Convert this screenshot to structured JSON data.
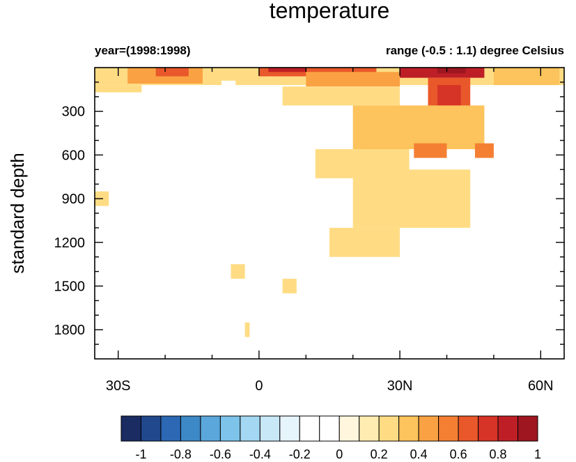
{
  "chart_data": {
    "type": "heatmap",
    "title": "temperature",
    "left_string": "year=(1998:1998)",
    "right_string": "range (-0.5 : 1.1) degree Celsius",
    "xlabel": "",
    "ylabel": "standard depth",
    "x_range": [
      -35,
      65
    ],
    "y_range": [
      0,
      2000
    ],
    "y_reversed": true,
    "x_ticks": [
      {
        "value": -30,
        "label": "30S"
      },
      {
        "value": 0,
        "label": "0"
      },
      {
        "value": 30,
        "label": "30N"
      },
      {
        "value": 60,
        "label": "60N"
      }
    ],
    "y_ticks": [
      {
        "value": 300,
        "label": "300"
      },
      {
        "value": 600,
        "label": "600"
      },
      {
        "value": 900,
        "label": "900"
      },
      {
        "value": 1200,
        "label": "1200"
      },
      {
        "value": 1500,
        "label": "1500"
      },
      {
        "value": 1800,
        "label": "1800"
      }
    ],
    "colorbar": {
      "levels": [
        -1,
        -0.9,
        -0.8,
        -0.7,
        -0.6,
        -0.5,
        -0.4,
        -0.3,
        -0.2,
        -0.1,
        0,
        0.1,
        0.2,
        0.3,
        0.4,
        0.5,
        0.6,
        0.7,
        0.8,
        0.9,
        1
      ],
      "tick_labels": [
        "-1",
        "-0.8",
        "-0.6",
        "-0.4",
        "-0.2",
        "0",
        "0.2",
        "0.4",
        "0.6",
        "0.8",
        "1"
      ],
      "colors": [
        "#1b2c63",
        "#21488d",
        "#2c68b3",
        "#3d88c6",
        "#5ba7db",
        "#7dc3ea",
        "#a3d7f2",
        "#c8e7f7",
        "#e6f4fb",
        "#ffffff",
        "#ffffff",
        "#fff6dd",
        "#ffecb0",
        "#ffdc84",
        "#fdc35c",
        "#faa243",
        "#f47f33",
        "#e9582a",
        "#d63427",
        "#be1f26",
        "#9e1620"
      ]
    },
    "regions": [
      {
        "x": [
          -35,
          65
        ],
        "y": [
          0,
          120
        ],
        "value": 0.2
      },
      {
        "x": [
          -35,
          -25
        ],
        "y": [
          120,
          170
        ],
        "value": 0.2
      },
      {
        "x": [
          -25,
          -10
        ],
        "y": [
          120,
          160
        ],
        "value": -0.1
      },
      {
        "x": [
          -8,
          -5
        ],
        "y": [
          90,
          130
        ],
        "value": -0.2
      },
      {
        "x": [
          -28,
          -12
        ],
        "y": [
          0,
          110
        ],
        "value": 0.4
      },
      {
        "x": [
          -22,
          -15
        ],
        "y": [
          0,
          60
        ],
        "value": 0.6
      },
      {
        "x": [
          0,
          25
        ],
        "y": [
          0,
          60
        ],
        "value": 0.6
      },
      {
        "x": [
          2,
          10
        ],
        "y": [
          0,
          30
        ],
        "value": 0.8
      },
      {
        "x": [
          10,
          30
        ],
        "y": [
          30,
          130
        ],
        "value": 0.4
      },
      {
        "x": [
          5,
          30
        ],
        "y": [
          130,
          260
        ],
        "value": 0.2
      },
      {
        "x": [
          30,
          48
        ],
        "y": [
          0,
          70
        ],
        "value": 0.8
      },
      {
        "x": [
          38,
          44
        ],
        "y": [
          0,
          40
        ],
        "value": 0.9
      },
      {
        "x": [
          36,
          45
        ],
        "y": [
          70,
          330
        ],
        "value": 0.6
      },
      {
        "x": [
          38,
          43
        ],
        "y": [
          120,
          300
        ],
        "value": 0.7
      },
      {
        "x": [
          20,
          48
        ],
        "y": [
          260,
          560
        ],
        "value": 0.3
      },
      {
        "x": [
          33,
          40
        ],
        "y": [
          520,
          620
        ],
        "value": 0.5
      },
      {
        "x": [
          46,
          50
        ],
        "y": [
          520,
          620
        ],
        "value": 0.5
      },
      {
        "x": [
          22,
          32
        ],
        "y": [
          560,
          700
        ],
        "value": 0.3
      },
      {
        "x": [
          12,
          32
        ],
        "y": [
          560,
          760
        ],
        "value": 0.2
      },
      {
        "x": [
          20,
          45
        ],
        "y": [
          700,
          1100
        ],
        "value": 0.2
      },
      {
        "x": [
          15,
          30
        ],
        "y": [
          1100,
          1300
        ],
        "value": 0.2
      },
      {
        "x": [
          50,
          64
        ],
        "y": [
          0,
          120
        ],
        "value": 0.3
      },
      {
        "x": [
          54,
          64
        ],
        "y": [
          300,
          1950
        ],
        "value": -0.1
      },
      {
        "x": [
          55,
          58
        ],
        "y": [
          400,
          800
        ],
        "value": -0.2
      },
      {
        "x": [
          58,
          62
        ],
        "y": [
          850,
          1050
        ],
        "value": -0.2
      },
      {
        "x": [
          60,
          63
        ],
        "y": [
          1350,
          1500
        ],
        "value": -0.2
      },
      {
        "x": [
          49,
          54
        ],
        "y": [
          1100,
          1900
        ],
        "value": -0.1
      },
      {
        "x": [
          43,
          49
        ],
        "y": [
          1400,
          1700
        ],
        "value": -0.1
      },
      {
        "x": [
          -32,
          -20
        ],
        "y": [
          350,
          600
        ],
        "value": -0.1
      },
      {
        "x": [
          -35,
          -32
        ],
        "y": [
          850,
          950
        ],
        "value": 0.2
      },
      {
        "x": [
          -6,
          -3
        ],
        "y": [
          1350,
          1450
        ],
        "value": 0.2
      },
      {
        "x": [
          5,
          8
        ],
        "y": [
          1450,
          1550
        ],
        "value": 0.2
      },
      {
        "x": [
          -3,
          -2
        ],
        "y": [
          1750,
          1850
        ],
        "value": 0.2
      }
    ]
  }
}
